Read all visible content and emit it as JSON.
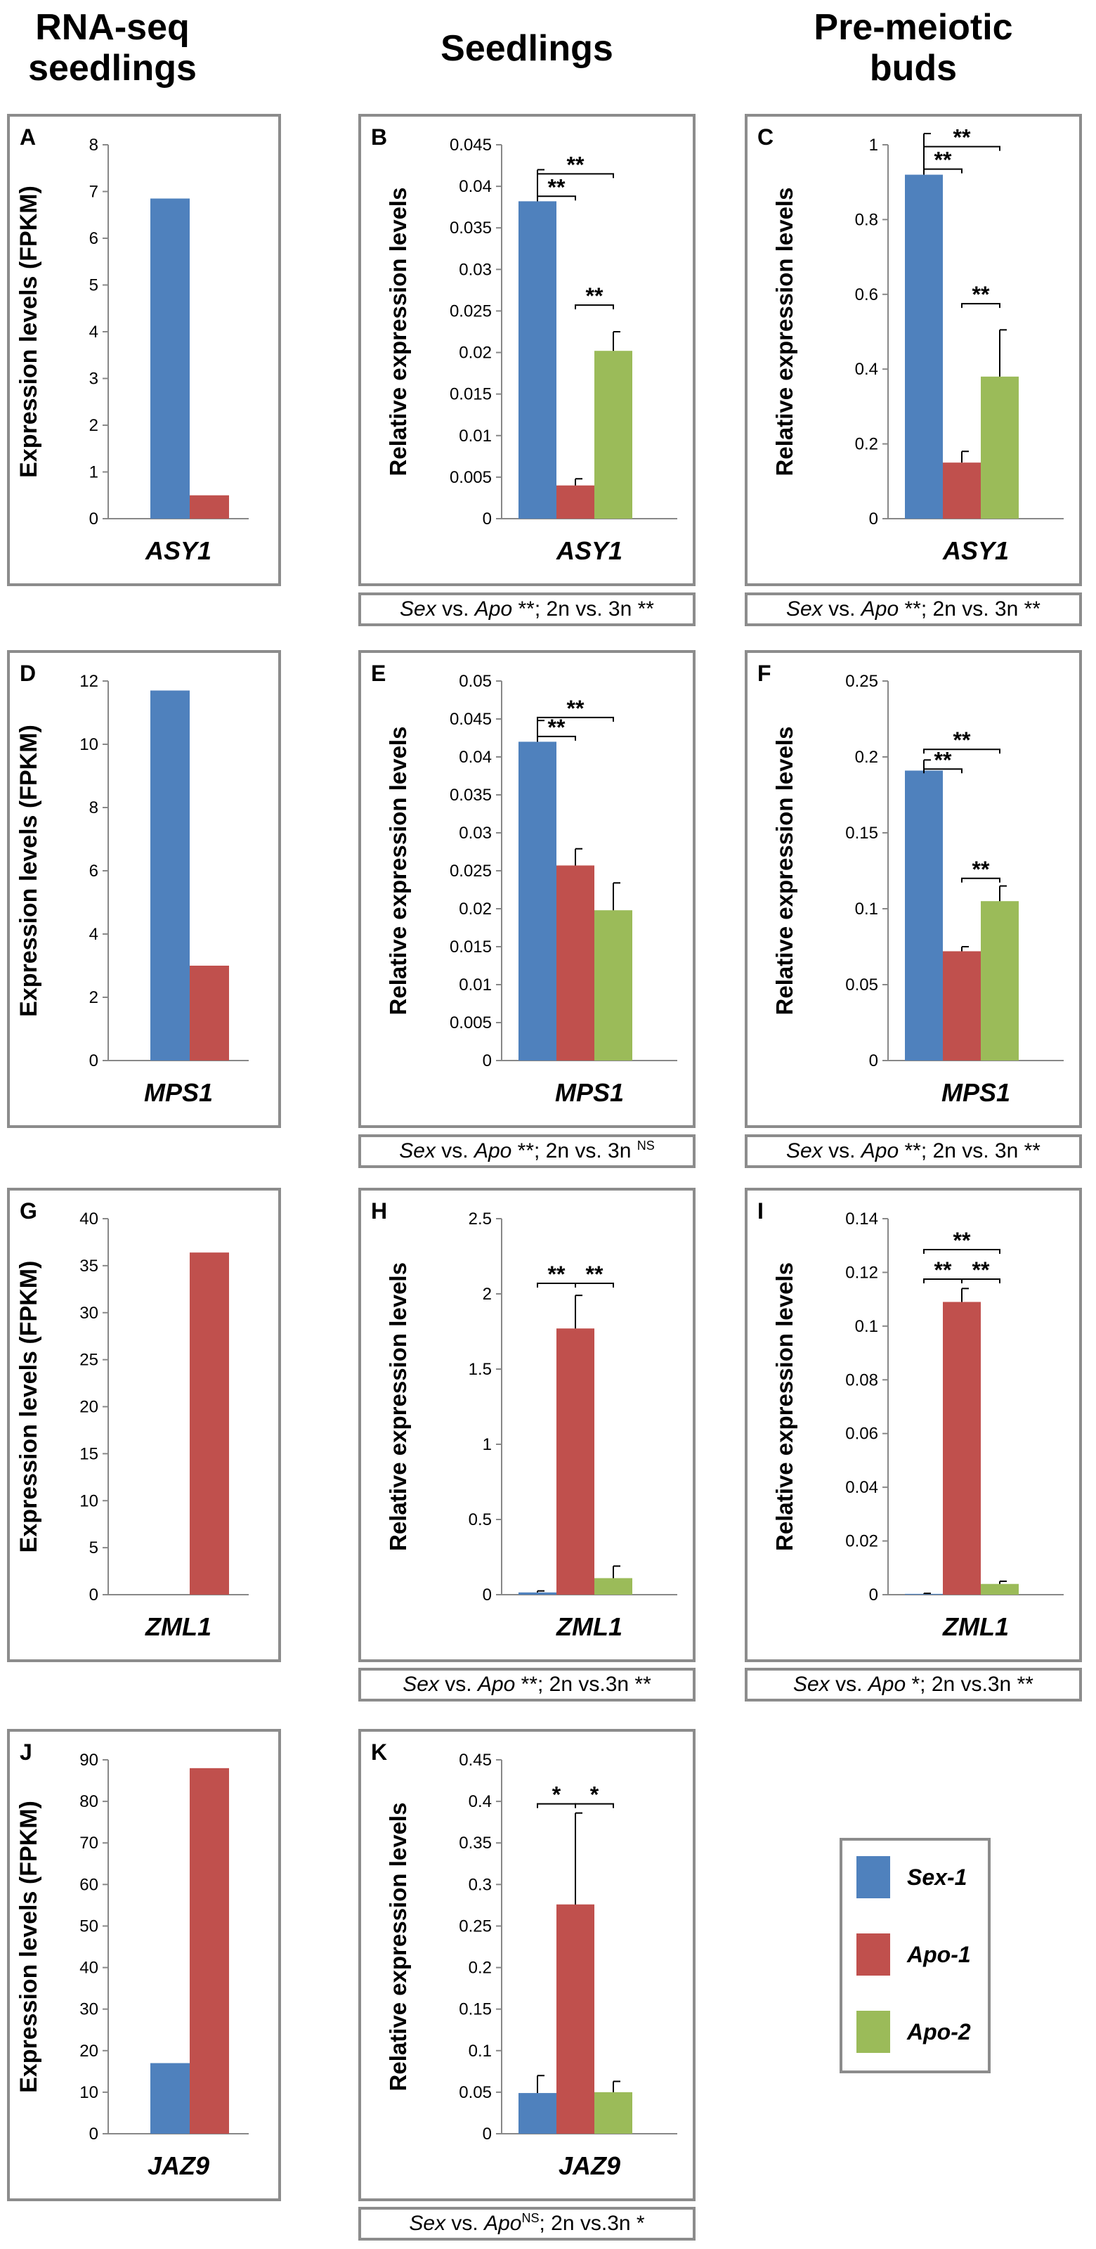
{
  "column_headers": [
    {
      "line1": "RNA-seq",
      "line2": "seedlings"
    },
    {
      "line1": "Seedlings",
      "line2": ""
    },
    {
      "line1": "Pre-meiotic",
      "line2": "buds"
    }
  ],
  "colors": {
    "Sex-1": "#4f81bd",
    "Apo-1": "#c0504d",
    "Apo-2": "#9bbb59",
    "frame": "#8c8c8c"
  },
  "legend": {
    "items": [
      "Sex-1",
      "Apo-1",
      "Apo-2"
    ]
  },
  "stat_boxes": [
    {
      "panel": "B",
      "a": "Sex",
      "b": " vs. ",
      "c": "Apo",
      "d": " **; 2n vs. 3n **",
      "sup": ""
    },
    {
      "panel": "C",
      "a": "Sex",
      "b": " vs. ",
      "c": "Apo",
      "d": " **; 2n vs. 3n **",
      "sup": ""
    },
    {
      "panel": "E",
      "a": "Sex",
      "b": " vs. ",
      "c": "Apo",
      "d": " **; 2n vs. 3n ",
      "sup": "NS"
    },
    {
      "panel": "F",
      "a": "Sex",
      "b": " vs. ",
      "c": "Apo",
      "d": " **; 2n vs. 3n **",
      "sup": ""
    },
    {
      "panel": "H",
      "a": "Sex",
      "b": " vs. ",
      "c": "Apo",
      "d": " **; 2n vs.3n **",
      "sup": ""
    },
    {
      "panel": "I",
      "a": "Sex",
      "b": " vs. ",
      "c": "Apo",
      "d": " *; 2n vs.3n **",
      "sup": ""
    },
    {
      "panel": "K",
      "a": "Sex",
      "b": " vs. ",
      "c": "Apo",
      "d": "; 2n vs.3n *",
      "sup": "NS"
    }
  ],
  "chart_data": [
    {
      "panel": "A",
      "type": "bar",
      "ylabel": "Expression levels (FPKM)",
      "xlabel": "ASY1",
      "ylim": [
        0,
        8
      ],
      "ticks": [
        0,
        1,
        2,
        3,
        4,
        5,
        6,
        7,
        8
      ],
      "tick_labels": [
        "0",
        "1",
        "2",
        "3",
        "4",
        "5",
        "6",
        "7",
        "8"
      ],
      "categories": [
        "Sex-1",
        "Apo-1"
      ],
      "values": [
        6.85,
        0.5
      ],
      "errors": [],
      "brackets": []
    },
    {
      "panel": "B",
      "type": "bar",
      "ylabel": "Relative expression levels",
      "xlabel": "ASY1",
      "ylim": [
        0,
        0.045
      ],
      "ticks": [
        0,
        0.005,
        0.01,
        0.015,
        0.02,
        0.025,
        0.03,
        0.035,
        0.04,
        0.045
      ],
      "tick_labels": [
        "0",
        "0.005",
        "0.01",
        "0.015",
        "0.02",
        "0.025",
        "0.03",
        "0.035",
        "0.04",
        "0.045"
      ],
      "categories": [
        "Sex-1",
        "Apo-1",
        "Apo-2"
      ],
      "values": [
        0.0382,
        0.004,
        0.0202
      ],
      "errors": [
        0.0038,
        0.0008,
        0.0023
      ],
      "brackets": [
        {
          "from": 0,
          "to": 1,
          "y": 0.0388,
          "label": "**"
        },
        {
          "from": 0,
          "to": 2,
          "y": 0.0415,
          "label": "**"
        },
        {
          "from": 1,
          "to": 2,
          "y": 0.0257,
          "label": "**"
        }
      ]
    },
    {
      "panel": "C",
      "type": "bar",
      "ylabel": "Relative expression levels",
      "xlabel": "ASY1",
      "ylim": [
        0,
        1
      ],
      "ticks": [
        0,
        0.2,
        0.4,
        0.6,
        0.8,
        1
      ],
      "tick_labels": [
        "0",
        "0.2",
        "0.4",
        "0.6",
        "0.8",
        "1"
      ],
      "categories": [
        "Sex-1",
        "Apo-1",
        "Apo-2"
      ],
      "values": [
        0.92,
        0.15,
        0.38
      ],
      "errors": [
        0.11,
        0.03,
        0.125
      ],
      "brackets": [
        {
          "from": 0,
          "to": 1,
          "y": 0.935,
          "label": "**"
        },
        {
          "from": 0,
          "to": 2,
          "y": 0.995,
          "label": "**"
        },
        {
          "from": 1,
          "to": 2,
          "y": 0.575,
          "label": "**"
        }
      ]
    },
    {
      "panel": "D",
      "type": "bar",
      "ylabel": "Expression levels (FPKM)",
      "xlabel": "MPS1",
      "ylim": [
        0,
        12
      ],
      "ticks": [
        0,
        2,
        4,
        6,
        8,
        10,
        12
      ],
      "tick_labels": [
        "0",
        "2",
        "4",
        "6",
        "8",
        "10",
        "12"
      ],
      "categories": [
        "Sex-1",
        "Apo-1"
      ],
      "values": [
        11.7,
        3.0
      ],
      "errors": [],
      "brackets": []
    },
    {
      "panel": "E",
      "type": "bar",
      "ylabel": "Relative expression levels",
      "xlabel": "MPS1",
      "ylim": [
        0,
        0.05
      ],
      "ticks": [
        0,
        0.005,
        0.01,
        0.015,
        0.02,
        0.025,
        0.03,
        0.035,
        0.04,
        0.045,
        0.05
      ],
      "tick_labels": [
        "0",
        "0.005",
        "0.01",
        "0.015",
        "0.02",
        "0.025",
        "0.03",
        "0.035",
        "0.04",
        "0.045",
        "0.05"
      ],
      "categories": [
        "Sex-1",
        "Apo-1",
        "Apo-2"
      ],
      "values": [
        0.042,
        0.0257,
        0.0198
      ],
      "errors": [
        0.0028,
        0.0022,
        0.0036
      ],
      "brackets": [
        {
          "from": 0,
          "to": 1,
          "y": 0.0427,
          "label": "**"
        },
        {
          "from": 0,
          "to": 2,
          "y": 0.0452,
          "label": "**"
        }
      ]
    },
    {
      "panel": "F",
      "type": "bar",
      "ylabel": "Relative expression levels",
      "xlabel": "MPS1",
      "ylim": [
        0,
        0.25
      ],
      "ticks": [
        0,
        0.05,
        0.1,
        0.15,
        0.2,
        0.25
      ],
      "tick_labels": [
        "0",
        "0.05",
        "0.1",
        "0.15",
        "0.2",
        "0.25"
      ],
      "categories": [
        "Sex-1",
        "Apo-1",
        "Apo-2"
      ],
      "values": [
        0.191,
        0.072,
        0.105
      ],
      "errors": [
        0.007,
        0.003,
        0.01
      ],
      "brackets": [
        {
          "from": 0,
          "to": 1,
          "y": 0.192,
          "label": "**"
        },
        {
          "from": 0,
          "to": 2,
          "y": 0.205,
          "label": "**"
        },
        {
          "from": 1,
          "to": 2,
          "y": 0.12,
          "label": "**"
        }
      ]
    },
    {
      "panel": "G",
      "type": "bar",
      "ylabel": "Expression levels (FPKM)",
      "xlabel": "ZML1",
      "ylim": [
        0,
        40
      ],
      "ticks": [
        0,
        5,
        10,
        15,
        20,
        25,
        30,
        35,
        40
      ],
      "tick_labels": [
        "0",
        "5",
        "10",
        "15",
        "20",
        "25",
        "30",
        "35",
        "40"
      ],
      "categories": [
        "Sex-1",
        "Apo-1"
      ],
      "values": [
        0,
        36.4
      ],
      "errors": [],
      "brackets": []
    },
    {
      "panel": "H",
      "type": "bar",
      "ylabel": "Relative expression levels",
      "xlabel": "ZML1",
      "ylim": [
        0,
        2.5
      ],
      "ticks": [
        0,
        0.5,
        1,
        1.5,
        2,
        2.5
      ],
      "tick_labels": [
        "0",
        "0.5",
        "1",
        "1.5",
        "2",
        "2.5"
      ],
      "categories": [
        "Sex-1",
        "Apo-1",
        "Apo-2"
      ],
      "values": [
        0.015,
        1.77,
        0.11
      ],
      "errors": [
        0.01,
        0.22,
        0.08
      ],
      "brackets": [
        {
          "from": 0,
          "to": 1,
          "y": 2.07,
          "label": "**"
        },
        {
          "from": 1,
          "to": 2,
          "y": 2.07,
          "label": "**"
        }
      ]
    },
    {
      "panel": "I",
      "type": "bar",
      "ylabel": "Relative expression levels",
      "xlabel": "ZML1",
      "ylim": [
        0,
        0.14
      ],
      "ticks": [
        0,
        0.02,
        0.04,
        0.06,
        0.08,
        0.1,
        0.12,
        0.14
      ],
      "tick_labels": [
        "0",
        "0.02",
        "0.04",
        "0.06",
        "0.08",
        "0.1",
        "0.12",
        "0.14"
      ],
      "categories": [
        "Sex-1",
        "Apo-1",
        "Apo-2"
      ],
      "values": [
        0.0003,
        0.109,
        0.004
      ],
      "errors": [
        0.0002,
        0.005,
        0.001
      ],
      "brackets": [
        {
          "from": 0,
          "to": 1,
          "y": 0.1175,
          "label": "**"
        },
        {
          "from": 1,
          "to": 2,
          "y": 0.1175,
          "label": "**"
        },
        {
          "from": 0,
          "to": 2,
          "y": 0.1285,
          "label": "**"
        }
      ]
    },
    {
      "panel": "J",
      "type": "bar",
      "ylabel": "Expression levels (FPKM)",
      "xlabel": "JAZ9",
      "ylim": [
        0,
        90
      ],
      "ticks": [
        0,
        10,
        20,
        30,
        40,
        50,
        60,
        70,
        80,
        90
      ],
      "tick_labels": [
        "0",
        "10",
        "20",
        "30",
        "40",
        "50",
        "60",
        "70",
        "80",
        "90"
      ],
      "categories": [
        "Sex-1",
        "Apo-1"
      ],
      "values": [
        17,
        88
      ],
      "errors": [],
      "brackets": []
    },
    {
      "panel": "K",
      "type": "bar",
      "ylabel": "Relative expression levels",
      "xlabel": "JAZ9",
      "ylim": [
        0,
        0.45
      ],
      "ticks": [
        0,
        0.05,
        0.1,
        0.15,
        0.2,
        0.25,
        0.3,
        0.35,
        0.4,
        0.45
      ],
      "tick_labels": [
        "0",
        "0.05",
        "0.1",
        "0.15",
        "0.2",
        "0.25",
        "0.3",
        "0.35",
        "0.4",
        "0.45"
      ],
      "categories": [
        "Sex-1",
        "Apo-1",
        "Apo-2"
      ],
      "values": [
        0.049,
        0.276,
        0.05
      ],
      "errors": [
        0.021,
        0.11,
        0.013
      ],
      "brackets": [
        {
          "from": 0,
          "to": 1,
          "y": 0.397,
          "label": "*"
        },
        {
          "from": 1,
          "to": 2,
          "y": 0.397,
          "label": "*"
        }
      ]
    }
  ]
}
